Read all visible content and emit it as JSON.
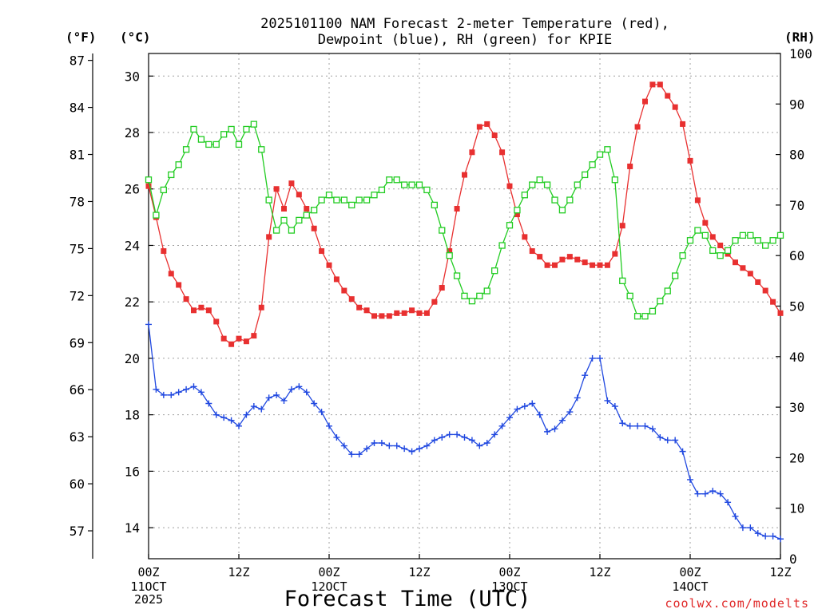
{
  "chart_data": {
    "type": "line",
    "title_line1": "2025101100 NAM Forecast 2-meter Temperature (red),",
    "title_line2": "Dewpoint (blue), RH (green) for KPIE",
    "units": {
      "fahrenheit": "(°F)",
      "celsius": "(°C)",
      "rh": "(RH)"
    },
    "xlabel": "Forecast Time (UTC)",
    "credit": "coolwx.com/modelts",
    "x_range_hours": [
      0,
      84
    ],
    "x_ticks": [
      {
        "hour": 0,
        "label": "00Z",
        "date": "11OCT",
        "year": "2025"
      },
      {
        "hour": 12,
        "label": "12Z",
        "date": "",
        "year": ""
      },
      {
        "hour": 24,
        "label": "00Z",
        "date": "12OCT",
        "year": ""
      },
      {
        "hour": 36,
        "label": "12Z",
        "date": "",
        "year": ""
      },
      {
        "hour": 48,
        "label": "00Z",
        "date": "13OCT",
        "year": ""
      },
      {
        "hour": 60,
        "label": "12Z",
        "date": "",
        "year": ""
      },
      {
        "hour": 72,
        "label": "00Z",
        "date": "14OCT",
        "year": ""
      },
      {
        "hour": 84,
        "label": "12Z",
        "date": "",
        "year": ""
      }
    ],
    "celsius_range": [
      12.9,
      30.8
    ],
    "celsius_ticks": [
      14,
      16,
      18,
      20,
      22,
      24,
      26,
      28,
      30
    ],
    "fahrenheit_ticks": [
      57,
      60,
      63,
      66,
      69,
      72,
      75,
      78,
      81,
      84,
      87
    ],
    "rh_range": [
      0,
      100
    ],
    "rh_ticks": [
      0,
      10,
      20,
      30,
      40,
      50,
      60,
      70,
      80,
      90,
      100
    ],
    "series": [
      {
        "name": "2-meter Temperature",
        "color": "#e83030",
        "axis": "celsius",
        "marker": "filled-square",
        "hours": [
          0,
          1,
          2,
          3,
          4,
          5,
          6,
          7,
          8,
          9,
          10,
          11,
          12,
          13,
          14,
          15,
          16,
          17,
          18,
          19,
          20,
          21,
          22,
          23,
          24,
          25,
          26,
          27,
          28,
          29,
          30,
          31,
          32,
          33,
          34,
          35,
          36,
          37,
          38,
          39,
          40,
          41,
          42,
          43,
          44,
          45,
          46,
          47,
          48,
          49,
          50,
          51,
          52,
          53,
          54,
          55,
          56,
          57,
          58,
          59,
          60,
          61,
          62,
          63,
          64,
          65,
          66,
          67,
          68,
          69,
          70,
          71,
          72,
          73,
          74,
          75,
          76,
          77,
          78,
          79,
          80,
          81,
          82,
          83,
          84
        ],
        "values": [
          26.1,
          25.0,
          23.8,
          23.0,
          22.6,
          22.1,
          21.7,
          21.8,
          21.7,
          21.3,
          20.7,
          20.5,
          20.7,
          20.6,
          20.8,
          21.8,
          24.3,
          26.0,
          25.3,
          26.2,
          25.8,
          25.3,
          24.6,
          23.8,
          23.3,
          22.8,
          22.4,
          22.1,
          21.8,
          21.7,
          21.5,
          21.5,
          21.5,
          21.6,
          21.6,
          21.7,
          21.6,
          21.6,
          22.0,
          22.5,
          23.8,
          25.3,
          26.5,
          27.3,
          28.2,
          28.3,
          27.9,
          27.3,
          26.1,
          25.1,
          24.3,
          23.8,
          23.6,
          23.3,
          23.3,
          23.5,
          23.6,
          23.5,
          23.4,
          23.3,
          23.3,
          23.3,
          23.7,
          24.7,
          26.8,
          28.2,
          29.1,
          29.7,
          29.7,
          29.3,
          28.9,
          28.3,
          27.0,
          25.6,
          24.8,
          24.3,
          24.0,
          23.7,
          23.4,
          23.2,
          23.0,
          22.7,
          22.4,
          22.0,
          21.6
        ]
      },
      {
        "name": "Dewpoint",
        "color": "#2048e0",
        "axis": "celsius",
        "marker": "plus",
        "hours": [
          0,
          1,
          2,
          3,
          4,
          5,
          6,
          7,
          8,
          9,
          10,
          11,
          12,
          13,
          14,
          15,
          16,
          17,
          18,
          19,
          20,
          21,
          22,
          23,
          24,
          25,
          26,
          27,
          28,
          29,
          30,
          31,
          32,
          33,
          34,
          35,
          36,
          37,
          38,
          39,
          40,
          41,
          42,
          43,
          44,
          45,
          46,
          47,
          48,
          49,
          50,
          51,
          52,
          53,
          54,
          55,
          56,
          57,
          58,
          59,
          60,
          61,
          62,
          63,
          64,
          65,
          66,
          67,
          68,
          69,
          70,
          71,
          72,
          73,
          74,
          75,
          76,
          77,
          78,
          79,
          80,
          81,
          82,
          83,
          84
        ],
        "values": [
          21.2,
          18.9,
          18.7,
          18.7,
          18.8,
          18.9,
          19.0,
          18.8,
          18.4,
          18.0,
          17.9,
          17.8,
          17.6,
          18.0,
          18.3,
          18.2,
          18.6,
          18.7,
          18.5,
          18.9,
          19.0,
          18.8,
          18.4,
          18.1,
          17.6,
          17.2,
          16.9,
          16.6,
          16.6,
          16.8,
          17.0,
          17.0,
          16.9,
          16.9,
          16.8,
          16.7,
          16.8,
          16.9,
          17.1,
          17.2,
          17.3,
          17.3,
          17.2,
          17.1,
          16.9,
          17.0,
          17.3,
          17.6,
          17.9,
          18.2,
          18.3,
          18.4,
          18.0,
          17.4,
          17.5,
          17.8,
          18.1,
          18.6,
          19.4,
          20.0,
          20.0,
          18.5,
          18.3,
          17.7,
          17.6,
          17.6,
          17.6,
          17.5,
          17.2,
          17.1,
          17.1,
          16.7,
          15.7,
          15.2,
          15.2,
          15.3,
          15.2,
          14.9,
          14.4,
          14.0,
          14.0,
          13.8,
          13.7,
          13.7,
          13.6
        ]
      },
      {
        "name": "RH",
        "color": "#22cc22",
        "axis": "rh",
        "marker": "open-square",
        "hours": [
          0,
          1,
          2,
          3,
          4,
          5,
          6,
          7,
          8,
          9,
          10,
          11,
          12,
          13,
          14,
          15,
          16,
          17,
          18,
          19,
          20,
          21,
          22,
          23,
          24,
          25,
          26,
          27,
          28,
          29,
          30,
          31,
          32,
          33,
          34,
          35,
          36,
          37,
          38,
          39,
          40,
          41,
          42,
          43,
          44,
          45,
          46,
          47,
          48,
          49,
          50,
          51,
          52,
          53,
          54,
          55,
          56,
          57,
          58,
          59,
          60,
          61,
          62,
          63,
          64,
          65,
          66,
          67,
          68,
          69,
          70,
          71,
          72,
          73,
          74,
          75,
          76,
          77,
          78,
          79,
          80,
          81,
          82,
          83,
          84
        ],
        "values": [
          75,
          68,
          73,
          76,
          78,
          81,
          85,
          83,
          82,
          82,
          84,
          85,
          82,
          85,
          86,
          81,
          71,
          65,
          67,
          65,
          67,
          68,
          69,
          71,
          72,
          71,
          71,
          70,
          71,
          71,
          72,
          73,
          75,
          75,
          74,
          74,
          74,
          73,
          70,
          65,
          60,
          56,
          52,
          51,
          52,
          53,
          57,
          62,
          66,
          69,
          72,
          74,
          75,
          74,
          71,
          69,
          71,
          74,
          76,
          78,
          80,
          81,
          75,
          55,
          52,
          48,
          48,
          49,
          51,
          53,
          56,
          60,
          63,
          65,
          64,
          61,
          60,
          61,
          63,
          64,
          64,
          63,
          62,
          63,
          64
        ]
      }
    ]
  }
}
